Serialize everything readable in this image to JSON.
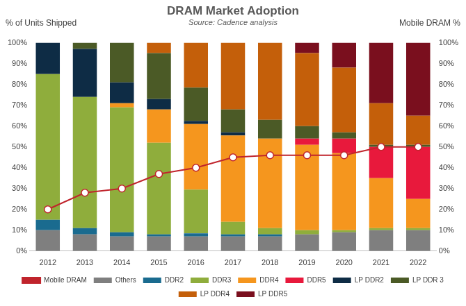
{
  "chart_data": {
    "type": "bar",
    "title": "DRAM Market Adoption",
    "subtitle": "Source: Cadence analysis",
    "y_label": "% of Units Shipped",
    "y2_label": "Mobile DRAM %",
    "categories": [
      "2012",
      "2013",
      "2014",
      "2015",
      "2016",
      "2017",
      "2018",
      "2019",
      "2020",
      "2021",
      "2022"
    ],
    "stacked": true,
    "grid": false,
    "legend": "bottom",
    "series": [
      {
        "name": "Others",
        "type": "bar",
        "color": "#7f7f7f",
        "values": [
          10,
          8,
          7,
          7,
          7,
          7,
          7,
          8,
          9,
          10,
          10
        ]
      },
      {
        "name": "DDR2",
        "type": "bar",
        "color": "#1a6b8f",
        "values": [
          5,
          3,
          2,
          1,
          1.5,
          1,
          1,
          0,
          0,
          0,
          0
        ]
      },
      {
        "name": "DDR3",
        "type": "bar",
        "color": "#8fad3c",
        "values": [
          70,
          63,
          60,
          44,
          21,
          6,
          3,
          2,
          1,
          1,
          1
        ]
      },
      {
        "name": "DDR4",
        "type": "bar",
        "color": "#f5961e",
        "values": [
          0,
          0,
          2,
          16,
          31.5,
          41.5,
          43,
          41,
          37,
          24,
          14
        ]
      },
      {
        "name": "DDR5",
        "type": "bar",
        "color": "#e8193c",
        "values": [
          0,
          0,
          0,
          0,
          0,
          0,
          0,
          3,
          7,
          15,
          25
        ]
      },
      {
        "name": "LP DDR2",
        "type": "bar",
        "color": "#0e2c45",
        "values": [
          15,
          23,
          10,
          5,
          1.5,
          1.5,
          0,
          0,
          0,
          0,
          0
        ]
      },
      {
        "name": "LP DDR 3",
        "type": "bar",
        "color": "#4b5a26",
        "values": [
          0,
          3,
          19,
          22,
          16,
          11,
          9,
          6,
          3,
          1,
          1
        ]
      },
      {
        "name": "LP DDR4",
        "type": "bar",
        "color": "#c45f0a",
        "values": [
          0,
          0,
          0,
          5,
          21.5,
          32,
          37,
          35,
          31,
          20,
          14
        ]
      },
      {
        "name": "LP DDR5",
        "type": "bar",
        "color": "#7a0f1e",
        "values": [
          0,
          0,
          0,
          0,
          0,
          0,
          0,
          5,
          12,
          29,
          35
        ]
      },
      {
        "name": "Mobile DRAM",
        "type": "line",
        "axis": "y2",
        "marker": "circle",
        "color": "#c0242c",
        "values": [
          20,
          28,
          30,
          37,
          40,
          45,
          46,
          46,
          46,
          50,
          50
        ]
      }
    ],
    "ylim": [
      0,
      100
    ],
    "yticks": [
      {
        "value": 0,
        "label": "0%"
      },
      {
        "value": 10,
        "label": "10%"
      },
      {
        "value": 20,
        "label": "20%"
      },
      {
        "value": 30,
        "label": "30%"
      },
      {
        "value": 40,
        "label": "40%"
      },
      {
        "value": 50,
        "label": "50%"
      },
      {
        "value": 60,
        "label": "60%"
      },
      {
        "value": 70,
        "label": "70%"
      },
      {
        "value": 80,
        "label": "80%"
      },
      {
        "value": 90,
        "label": "90%"
      },
      {
        "value": 100,
        "label": "100%"
      }
    ],
    "y2lim": [
      0,
      100
    ],
    "y2ticks": [
      {
        "value": 0,
        "label": "0%"
      },
      {
        "value": 10,
        "label": "10%"
      },
      {
        "value": 20,
        "label": "20%"
      },
      {
        "value": 30,
        "label": "30%"
      },
      {
        "value": 40,
        "label": "40%"
      },
      {
        "value": 50,
        "label": "50%"
      },
      {
        "value": 60,
        "label": "60%"
      },
      {
        "value": 70,
        "label": "70%"
      },
      {
        "value": 80,
        "label": "80%"
      },
      {
        "value": 90,
        "label": "90%"
      },
      {
        "value": 100,
        "label": "100%"
      }
    ]
  }
}
